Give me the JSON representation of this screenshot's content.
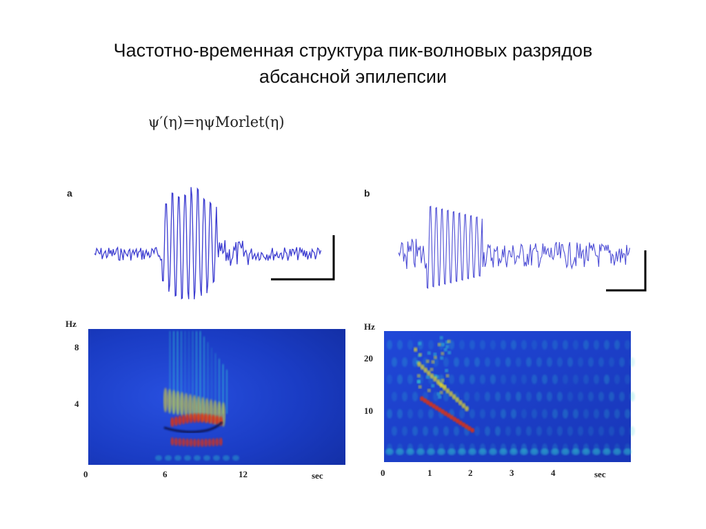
{
  "slide": {
    "title_line1": "Частотно-временная структура пик-волновых разрядов",
    "title_line2": "абсансной эпилепсии",
    "formula": "ψ′(η)=ηψMorlet(η)"
  },
  "panels": {
    "a": {
      "letter": "a",
      "freq_unit": "Hz",
      "freq_ticks": [
        "8",
        "4"
      ],
      "time_ticks": [
        "0",
        "6",
        "12"
      ],
      "time_unit": "sec"
    },
    "b": {
      "letter": "b",
      "freq_unit": "Hz",
      "freq_ticks": [
        "20",
        "10"
      ],
      "time_ticks": [
        "0",
        "1",
        "2",
        "3",
        "4"
      ],
      "time_unit": "sec"
    }
  },
  "colors": {
    "trace": "#3a3ad0",
    "scale_bar": "#000000",
    "spectrogram_bg": "#1e3cc8",
    "ridge_hot": "#e03010",
    "ridge_warm": "#f0e020",
    "ridge_cool": "#30d0d0"
  }
}
